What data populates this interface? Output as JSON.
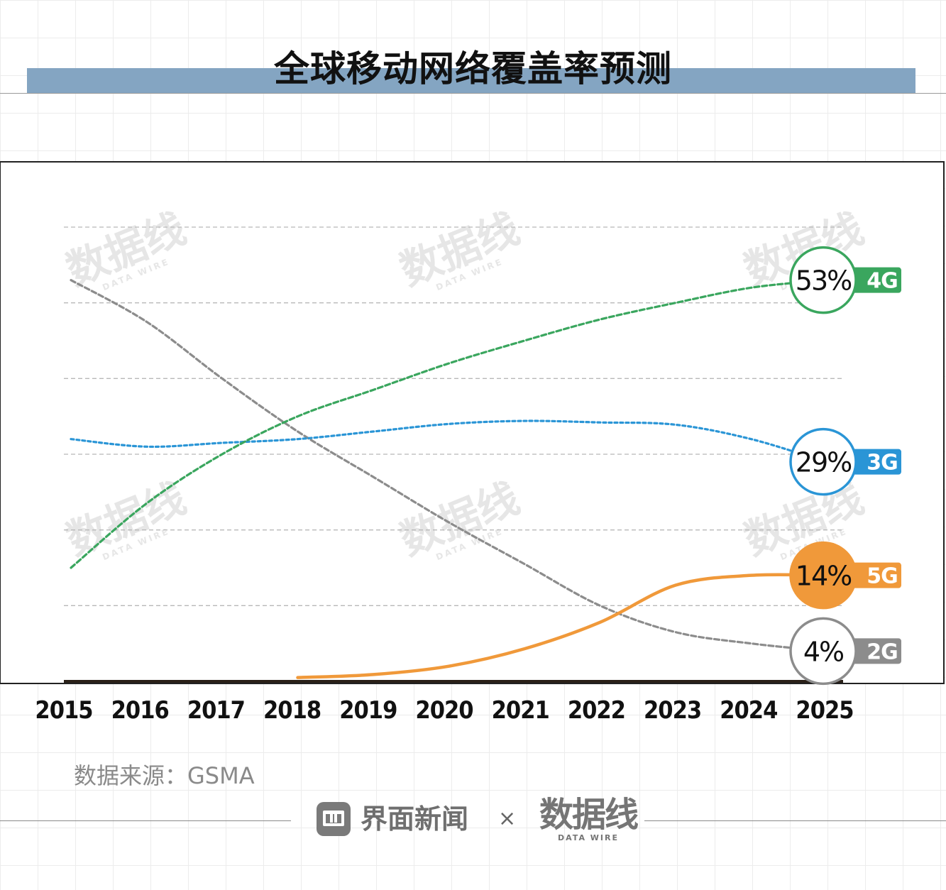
{
  "title": "全球移动网络覆盖率预测",
  "source": "数据来源：GSMA",
  "footer": {
    "brand": "界面新闻",
    "times": "×",
    "partner_cn": "数据线",
    "partner_en": "DATA WIRE"
  },
  "watermark": {
    "cn": "数据线",
    "en": "DATA WIRE"
  },
  "colors": {
    "4G": "#3aa65e",
    "3G": "#2a95d6",
    "2G": "#8c8c8c",
    "5G": "#f0993a",
    "title_bar": "#84a5c2"
  },
  "chart_data": {
    "type": "line",
    "title": "全球移动网络覆盖率预测",
    "xlabel": "",
    "ylabel": "",
    "ylim": [
      0,
      60
    ],
    "x": [
      "2015",
      "2016",
      "2017",
      "2018",
      "2019",
      "2020",
      "2021",
      "2022",
      "2023",
      "2024",
      "2025"
    ],
    "grid": true,
    "series": [
      {
        "name": "4G",
        "style": "dashed",
        "values": [
          15,
          23.5,
          30,
          35,
          38.5,
          42,
          45,
          47.8,
          50,
          52,
          53
        ],
        "end_label": "53%"
      },
      {
        "name": "3G",
        "style": "dotted",
        "values": [
          32,
          31,
          31.5,
          32,
          33,
          34,
          34.4,
          34.2,
          33.9,
          32,
          29
        ],
        "end_label": "29%"
      },
      {
        "name": "2G",
        "style": "dashed",
        "values": [
          53,
          47.5,
          40,
          33,
          27,
          21,
          15.5,
          10,
          6.5,
          5,
          4
        ],
        "end_label": "4%"
      },
      {
        "name": "5G",
        "style": "solid",
        "values": [
          null,
          null,
          null,
          0.5,
          0.9,
          2,
          4.3,
          7.8,
          12.7,
          14,
          14
        ],
        "end_label": "14%"
      }
    ]
  }
}
